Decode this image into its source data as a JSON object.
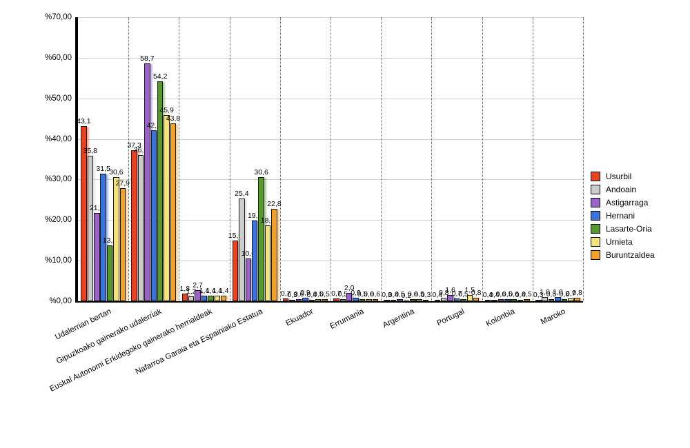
{
  "chart_data": {
    "type": "bar",
    "title": "",
    "categories": [
      "Udalerrian bertan",
      "Gipuzkoako gainerako udalerriak",
      "Euskal Autonomi Erkidegoko gainerako herrialdeak",
      "Nafarroa Garaia eta Espainiako Estatua",
      "Ekuador",
      "Errumania",
      "Argentina",
      "Portugal",
      "Kolonbia",
      "Maroko"
    ],
    "series": [
      {
        "name": "Usurbil",
        "color": "#e74224",
        "values": [
          43.1,
          37.3,
          1.8,
          15.0,
          0.7,
          0.7,
          0.3,
          0.4,
          0.4,
          0.3
        ]
      },
      {
        "name": "Andoain",
        "color": "#cccccc",
        "values": [
          35.8,
          36.0,
          1.2,
          25.4,
          0.3,
          0.5,
          0.4,
          0.8,
          0.4,
          1.0
        ]
      },
      {
        "name": "Astigarraga",
        "color": "#9a63c8",
        "values": [
          21.8,
          58.7,
          2.7,
          10.6,
          0.6,
          2.0,
          0.5,
          1.6,
          0.6,
          0.5
        ]
      },
      {
        "name": "Hernani",
        "color": "#3b73d8",
        "values": [
          31.5,
          42.1,
          1.4,
          19.9,
          0.9,
          0.9,
          0.2,
          0.7,
          0.5,
          1.0
        ]
      },
      {
        "name": "Lasarte-Oria",
        "color": "#57982f",
        "values": [
          13.8,
          54.2,
          1.4,
          30.6,
          0.4,
          0.5,
          0.6,
          0.5,
          0.6,
          0.6
        ]
      },
      {
        "name": "Urnieta",
        "color": "#f4e27c",
        "values": [
          30.6,
          45.9,
          1.4,
          18.7,
          0.5,
          0.6,
          0.5,
          1.5,
          0.4,
          0.7
        ]
      },
      {
        "name": "Buruntzaldea",
        "color": "#f0a02c",
        "values": [
          27.9,
          43.8,
          1.4,
          22.8,
          0.5,
          0.6,
          0.3,
          0.8,
          0.5,
          0.8
        ]
      }
    ],
    "ylim": [
      0,
      70
    ],
    "ytick_step": 10,
    "ytick_labels": [
      "%70,00",
      "%60,00",
      "%50,00",
      "%40,00",
      "%30,00",
      "%20,00",
      "%10,00",
      "%0,00"
    ],
    "value_label_format": "comma-decimal, one digit (e.g. 43,1)",
    "grid": {
      "horizontal": "solid light gray every 10%",
      "vertical": "dotted dark gray separators between category groups"
    },
    "legend_position": "right"
  }
}
